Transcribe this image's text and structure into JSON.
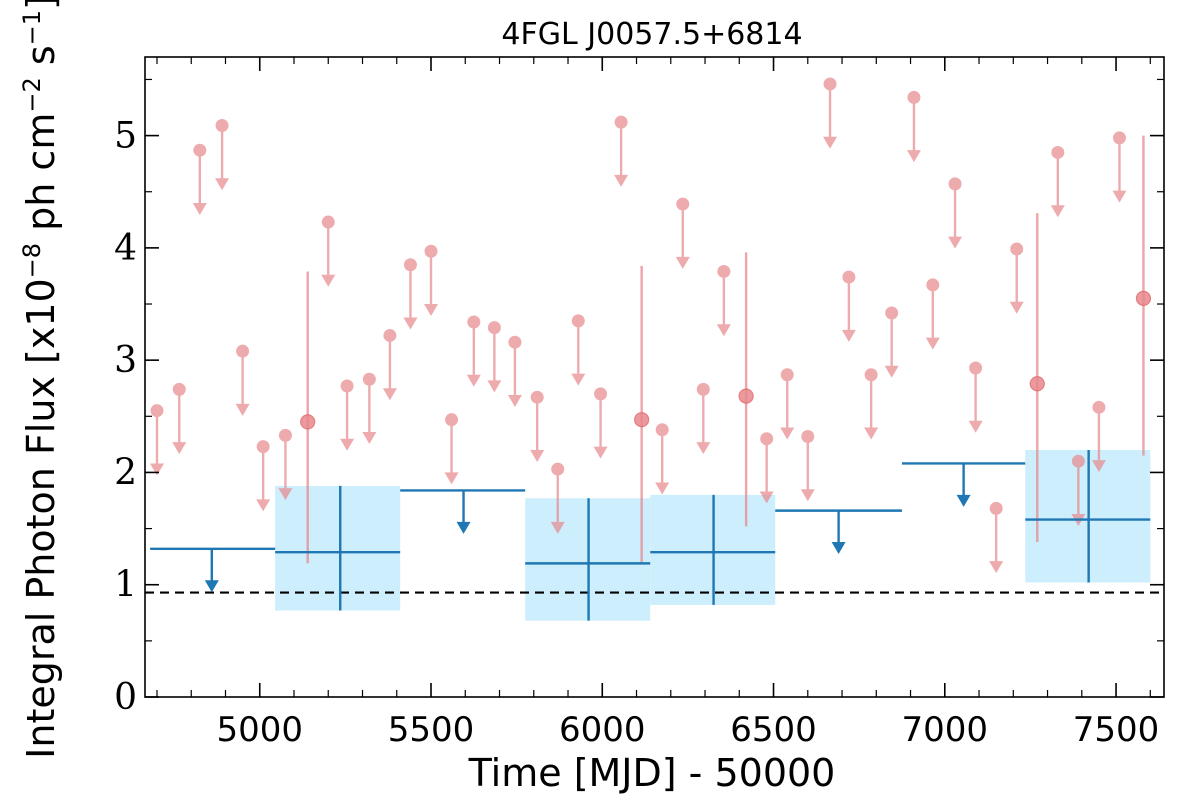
{
  "chart_data": {
    "type": "scatter",
    "title": "4FGL J0057.5+6814",
    "xlabel": "Time [MJD] - 50000",
    "ylabel": "Integral Photon Flux [x10",
    "ylabel_exp1": "−8",
    "ylabel_mid": " ph cm",
    "ylabel_exp2": "−2",
    "ylabel_mid2": " s",
    "ylabel_exp3": "−1",
    "ylabel_end": "]",
    "xlim": [
      4665,
      7640
    ],
    "ylim": [
      0,
      5.7
    ],
    "xticks": [
      5000,
      5500,
      6000,
      6500,
      7000,
      7500
    ],
    "xtick_labels": [
      "5000",
      "5500",
      "6000",
      "6500",
      "7000",
      "7500"
    ],
    "yticks": [
      0,
      1,
      2,
      3,
      4,
      5
    ],
    "ytick_labels": [
      "0",
      "1",
      "2",
      "3",
      "4",
      "5"
    ],
    "baseline_flux": 0.93,
    "colors": {
      "short_bins": "#e8888c",
      "long_bins": "#1f77b4",
      "long_bin_band": "#cdeefc",
      "baseline": "#000000"
    },
    "short_bin_upper_limits": [
      {
        "x": 4700,
        "y": 2.55
      },
      {
        "x": 4765,
        "y": 2.74
      },
      {
        "x": 4825,
        "y": 4.87
      },
      {
        "x": 4890,
        "y": 5.09
      },
      {
        "x": 4950,
        "y": 3.08
      },
      {
        "x": 5010,
        "y": 2.23
      },
      {
        "x": 5075,
        "y": 2.33
      },
      {
        "x": 5200,
        "y": 4.23
      },
      {
        "x": 5255,
        "y": 2.77
      },
      {
        "x": 5320,
        "y": 2.83
      },
      {
        "x": 5380,
        "y": 3.22
      },
      {
        "x": 5440,
        "y": 3.85
      },
      {
        "x": 5500,
        "y": 3.97
      },
      {
        "x": 5560,
        "y": 2.47
      },
      {
        "x": 5625,
        "y": 3.34
      },
      {
        "x": 5685,
        "y": 3.29
      },
      {
        "x": 5745,
        "y": 3.16
      },
      {
        "x": 5810,
        "y": 2.67
      },
      {
        "x": 5870,
        "y": 2.03
      },
      {
        "x": 5930,
        "y": 3.35
      },
      {
        "x": 5995,
        "y": 2.7
      },
      {
        "x": 6055,
        "y": 5.12
      },
      {
        "x": 6175,
        "y": 2.38
      },
      {
        "x": 6235,
        "y": 4.39
      },
      {
        "x": 6295,
        "y": 2.74
      },
      {
        "x": 6355,
        "y": 3.79
      },
      {
        "x": 6480,
        "y": 2.3
      },
      {
        "x": 6540,
        "y": 2.87
      },
      {
        "x": 6600,
        "y": 2.32
      },
      {
        "x": 6665,
        "y": 5.46
      },
      {
        "x": 6720,
        "y": 3.74
      },
      {
        "x": 6785,
        "y": 2.87
      },
      {
        "x": 6845,
        "y": 3.42
      },
      {
        "x": 6910,
        "y": 5.34
      },
      {
        "x": 6965,
        "y": 3.67
      },
      {
        "x": 7030,
        "y": 4.57
      },
      {
        "x": 7090,
        "y": 2.93
      },
      {
        "x": 7150,
        "y": 1.68
      },
      {
        "x": 7210,
        "y": 3.99
      },
      {
        "x": 7330,
        "y": 4.85
      },
      {
        "x": 7390,
        "y": 2.1
      },
      {
        "x": 7450,
        "y": 2.58
      },
      {
        "x": 7510,
        "y": 4.98
      }
    ],
    "short_bin_detections": [
      {
        "x": 5140,
        "y": 2.45,
        "ylow": 1.19,
        "yhigh": 3.79
      },
      {
        "x": 6115,
        "y": 2.47,
        "ylow": 1.2,
        "yhigh": 3.84
      },
      {
        "x": 6420,
        "y": 2.68,
        "ylow": 1.52,
        "yhigh": 3.96
      },
      {
        "x": 7270,
        "y": 2.79,
        "ylow": 1.38,
        "yhigh": 4.31
      },
      {
        "x": 7580,
        "y": 3.55,
        "ylow": 2.15,
        "yhigh": 5.0
      }
    ],
    "long_bin_detections": [
      {
        "x": 5235,
        "xlow": 5045,
        "xhigh": 5410,
        "y": 1.29,
        "ylow": 0.77,
        "yhigh": 1.88
      },
      {
        "x": 5960,
        "xlow": 5775,
        "xhigh": 6140,
        "y": 1.19,
        "ylow": 0.68,
        "yhigh": 1.77
      },
      {
        "x": 6325,
        "xlow": 6140,
        "xhigh": 6505,
        "y": 1.29,
        "ylow": 0.82,
        "yhigh": 1.8
      },
      {
        "x": 7420,
        "xlow": 7235,
        "xhigh": 7600,
        "y": 1.58,
        "ylow": 1.02,
        "yhigh": 2.2
      }
    ],
    "long_bin_upper_limits": [
      {
        "x": 4860,
        "xlow": 4680,
        "xhigh": 5045,
        "y": 1.32
      },
      {
        "x": 5595,
        "xlow": 5410,
        "xhigh": 5775,
        "y": 1.84
      },
      {
        "x": 6690,
        "xlow": 6505,
        "xhigh": 6875,
        "y": 1.66
      },
      {
        "x": 7055,
        "xlow": 6875,
        "xhigh": 7235,
        "y": 2.08
      }
    ]
  }
}
